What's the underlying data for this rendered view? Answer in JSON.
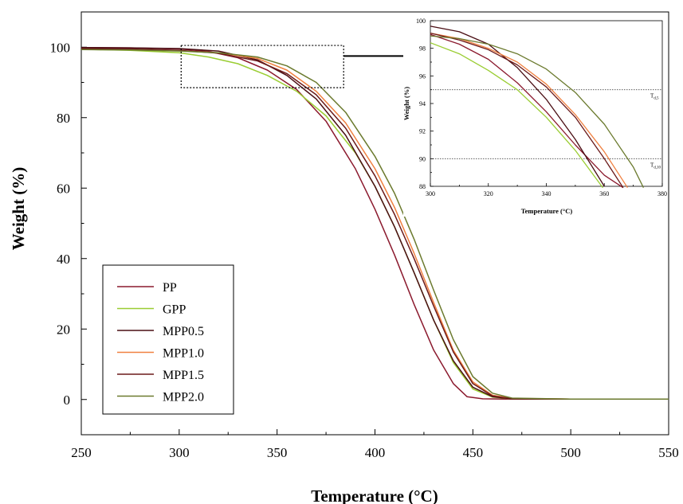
{
  "chart_data": [
    {
      "id": "main",
      "type": "line",
      "xlabel": "Temperature (°C)",
      "ylabel": "Weight (%)",
      "xlim": [
        250,
        550
      ],
      "ylim": [
        -10,
        110
      ],
      "xticks": [
        250,
        300,
        350,
        400,
        450,
        500,
        550
      ],
      "yticks": [
        0,
        20,
        40,
        60,
        80,
        100
      ],
      "grid": false,
      "legend_placement": "bottom-left",
      "zoom_box": {
        "x": [
          301,
          384
        ],
        "y": [
          88.5,
          100.5
        ]
      },
      "series": [
        {
          "name": "PP",
          "color": "#8b1a2e",
          "x": [
            250,
            275,
            300,
            315,
            330,
            345,
            360,
            375,
            390,
            400,
            410,
            420,
            430,
            440,
            447,
            455,
            470,
            500,
            550
          ],
          "y": [
            99.9,
            99.8,
            99.5,
            98.8,
            97.0,
            93.5,
            88.0,
            79.0,
            65.5,
            54.0,
            41.0,
            27.0,
            14.0,
            4.5,
            0.8,
            0.2,
            0.1,
            0.1,
            0.1
          ]
        },
        {
          "name": "GPP",
          "color": "#9acd32",
          "x": [
            250,
            275,
            300,
            315,
            330,
            345,
            360,
            375,
            390,
            400,
            410,
            420,
            430,
            440,
            450,
            460,
            470,
            500,
            550
          ],
          "y": [
            99.4,
            99.1,
            98.4,
            97.2,
            95.3,
            92.0,
            87.5,
            80.5,
            70.0,
            60.5,
            49.0,
            36.0,
            22.5,
            10.5,
            3.0,
            0.7,
            0.2,
            0.1,
            0.1
          ]
        },
        {
          "name": "MPP0.5",
          "color": "#4a0e14",
          "x": [
            250,
            275,
            300,
            320,
            340,
            355,
            370,
            385,
            400,
            410,
            420,
            430,
            440,
            450,
            460,
            470,
            500,
            550
          ],
          "y": [
            99.9,
            99.8,
            99.6,
            98.9,
            96.4,
            92.0,
            85.3,
            75.0,
            60.5,
            49.0,
            36.0,
            22.5,
            11.0,
            3.5,
            0.8,
            0.2,
            0.1,
            0.1
          ]
        },
        {
          "name": "MPP1.0",
          "color": "#f08040",
          "x": [
            250,
            275,
            300,
            320,
            340,
            355,
            370,
            385,
            400,
            410,
            420,
            430,
            440,
            450,
            460,
            470,
            500,
            550
          ],
          "y": [
            99.5,
            99.3,
            99.0,
            98.4,
            96.8,
            93.5,
            87.5,
            78.5,
            65.5,
            54.5,
            41.5,
            27.5,
            14.0,
            5.0,
            1.2,
            0.3,
            0.1,
            0.1
          ]
        },
        {
          "name": "MPP1.5",
          "color": "#6b1a1a",
          "x": [
            250,
            275,
            300,
            320,
            340,
            355,
            370,
            385,
            400,
            410,
            420,
            430,
            440,
            450,
            460,
            470,
            500,
            550
          ],
          "y": [
            99.6,
            99.5,
            99.1,
            98.3,
            96.1,
            92.5,
            86.5,
            77.0,
            63.5,
            52.5,
            40.0,
            26.5,
            13.5,
            4.5,
            1.0,
            0.2,
            0.1,
            0.1
          ]
        },
        {
          "name": "MPP2.0",
          "color": "#6b7a2e",
          "x": [
            250,
            275,
            300,
            320,
            340,
            355,
            370,
            385,
            400,
            410,
            420,
            430,
            440,
            450,
            460,
            470,
            500,
            550
          ],
          "y": [
            99.3,
            99.2,
            98.9,
            98.4,
            97.2,
            94.7,
            90.0,
            81.5,
            69.0,
            58.5,
            45.5,
            31.0,
            17.0,
            6.5,
            1.8,
            0.4,
            0.1,
            0.1
          ]
        }
      ]
    },
    {
      "id": "inset",
      "type": "line",
      "xlabel": "Temperature (°C)",
      "ylabel": "Weight (%)",
      "xlim": [
        300,
        380
      ],
      "ylim": [
        88,
        100
      ],
      "xticks": [
        300,
        320,
        340,
        360,
        380
      ],
      "yticks": [
        88,
        90,
        92,
        94,
        96,
        98,
        100
      ],
      "grid": false,
      "reference_lines": [
        {
          "y": 95,
          "label_main": "T",
          "label_sub": "d,5"
        },
        {
          "y": 90,
          "label_main": "T",
          "label_sub": "d,10"
        }
      ],
      "series": [
        {
          "name": "PP",
          "color": "#8b1a2e",
          "x": [
            300,
            310,
            320,
            330,
            340,
            350,
            360,
            366.5
          ],
          "y": [
            99.0,
            98.3,
            97.2,
            95.5,
            93.4,
            91.0,
            88.8,
            87.9
          ]
        },
        {
          "name": "GPP",
          "color": "#9acd32",
          "x": [
            300,
            310,
            320,
            330,
            340,
            350,
            359.5
          ],
          "y": [
            98.4,
            97.6,
            96.4,
            95.0,
            93.0,
            90.6,
            87.9
          ]
        },
        {
          "name": "MPP0.5",
          "color": "#4a0e14",
          "x": [
            300,
            310,
            320,
            330,
            340,
            350,
            360
          ],
          "y": [
            99.6,
            99.2,
            98.3,
            96.6,
            94.3,
            91.4,
            88.0
          ]
        },
        {
          "name": "MPP1.0",
          "color": "#f08040",
          "x": [
            300,
            310,
            320,
            330,
            340,
            350,
            360,
            368
          ],
          "y": [
            99.1,
            98.7,
            98.0,
            97.0,
            95.4,
            93.2,
            90.5,
            87.9
          ]
        },
        {
          "name": "MPP1.5",
          "color": "#6b1a1a",
          "x": [
            300,
            310,
            320,
            330,
            340,
            350,
            360,
            366.5
          ],
          "y": [
            99.1,
            98.6,
            97.9,
            96.8,
            95.2,
            93.0,
            90.0,
            87.9
          ]
        },
        {
          "name": "MPP2.0",
          "color": "#6b7a2e",
          "x": [
            300,
            310,
            320,
            330,
            340,
            350,
            360,
            370,
            373.5
          ],
          "y": [
            98.9,
            98.7,
            98.3,
            97.6,
            96.5,
            94.8,
            92.5,
            89.4,
            87.9
          ]
        }
      ]
    }
  ]
}
